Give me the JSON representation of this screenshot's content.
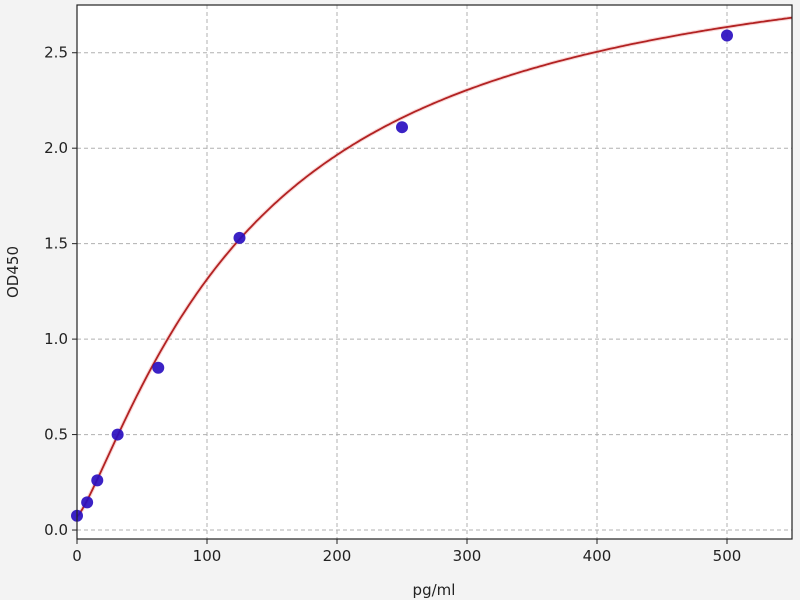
{
  "chart_data": {
    "type": "scatter",
    "title": "",
    "xlabel": "pg/ml",
    "ylabel": "OD450",
    "xlim": [
      0,
      550
    ],
    "ylim": [
      -0.047,
      2.75
    ],
    "xticks": [
      0,
      100,
      200,
      300,
      400,
      500
    ],
    "xtick_labels": [
      "0",
      "100",
      "200",
      "300",
      "400",
      "500"
    ],
    "yticks": [
      0.0,
      0.5,
      1.0,
      1.5,
      2.0,
      2.5
    ],
    "ytick_labels": [
      "0.0",
      "0.5",
      "1.0",
      "1.5",
      "2.0",
      "2.5"
    ],
    "grid": true,
    "points": {
      "x": [
        0,
        7.8,
        15.6,
        31.25,
        62.5,
        125,
        250,
        500
      ],
      "y": [
        0.075,
        0.145,
        0.26,
        0.5,
        0.85,
        1.53,
        2.11,
        2.59
      ]
    },
    "fit_curve": "4-parameter logistic",
    "colors": {
      "points": "#2a0fc0",
      "curve": "#b22222",
      "grid": "#b0b0b0",
      "background": "#f3f3f3",
      "plot": "#ffffff"
    }
  }
}
